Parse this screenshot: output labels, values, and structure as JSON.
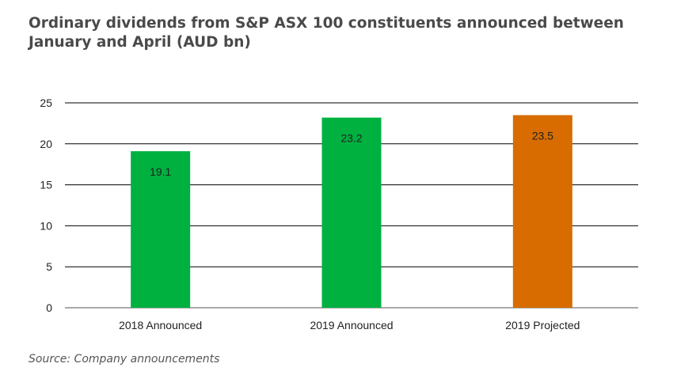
{
  "title_line1": "Ordinary dividends from S&P ASX 100 constituents announced between",
  "title_line2": "January and April (AUD bn)",
  "source": "Source: Company announcements",
  "chart_data": {
    "type": "bar",
    "title": "Ordinary dividends from S&P ASX 100 constituents announced between January and April (AUD bn)",
    "categories": [
      "2018 Announced",
      "2019 Announced",
      "2019 Projected"
    ],
    "values": [
      19.1,
      23.2,
      23.5
    ],
    "data_labels": [
      "19.1",
      "23.2",
      "23.5"
    ],
    "colors": [
      "#00b140",
      "#00b140",
      "#d86c00"
    ],
    "ylim": [
      0,
      25
    ],
    "yticks": [
      0,
      5,
      10,
      15,
      20,
      25
    ],
    "xlabel": "",
    "ylabel": "",
    "grid": true,
    "legend": "none"
  }
}
